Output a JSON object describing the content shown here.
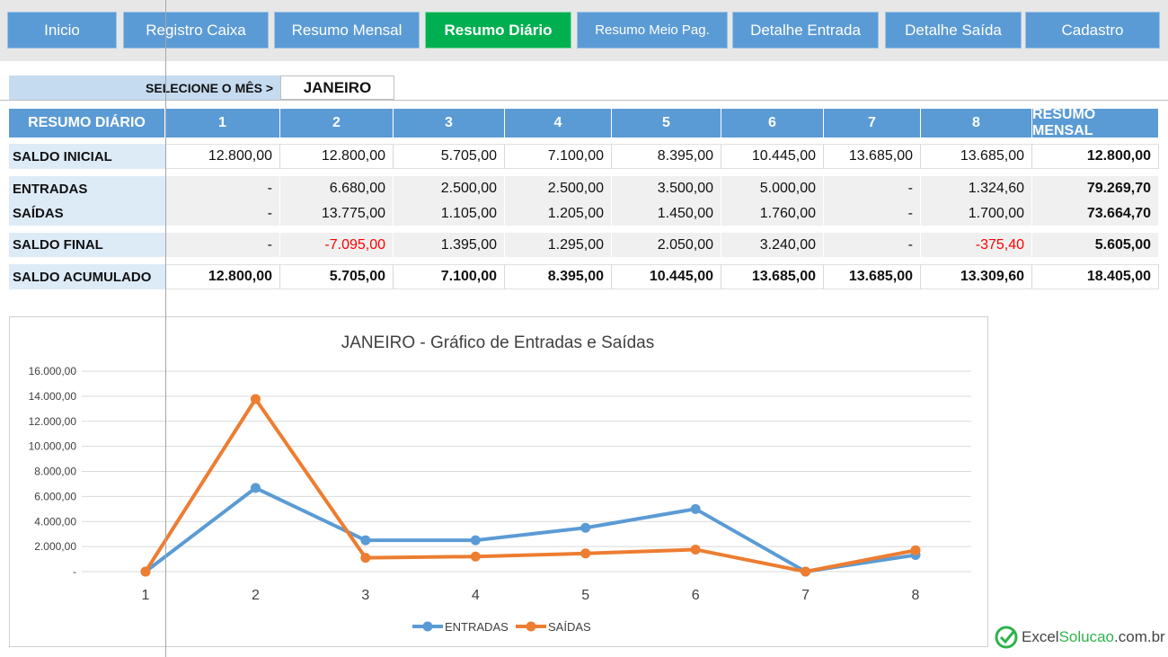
{
  "nav": [
    {
      "label": "Inicio",
      "active": false
    },
    {
      "label": "Registro Caixa",
      "active": false
    },
    {
      "label": "Resumo Mensal",
      "active": false
    },
    {
      "label": "Resumo Diário",
      "active": true
    },
    {
      "label": "Resumo Meio Pag.",
      "active": false
    },
    {
      "label": "Detalhe Entrada",
      "active": false
    },
    {
      "label": "Detalhe Saída",
      "active": false
    },
    {
      "label": "Cadastro",
      "active": false
    }
  ],
  "month_selector": {
    "label": "SELECIONE O MÊS >",
    "value": "JANEIRO"
  },
  "table": {
    "header_label": "RESUMO DIÁRIO",
    "columns": [
      "1",
      "2",
      "3",
      "4",
      "5",
      "6",
      "7",
      "8"
    ],
    "summary_header": "RESUMO MENSAL",
    "rows": [
      {
        "label": "SALDO INICIAL",
        "values": [
          "12.800,00",
          "12.800,00",
          "5.705,00",
          "7.100,00",
          "8.395,00",
          "10.445,00",
          "13.685,00",
          "13.685,00"
        ],
        "summary": "12.800,00"
      },
      {
        "label": "ENTRADAS",
        "values": [
          "-",
          "6.680,00",
          "2.500,00",
          "2.500,00",
          "3.500,00",
          "5.000,00",
          "-",
          "1.324,60"
        ],
        "summary": "79.269,70"
      },
      {
        "label": "SAÍDAS",
        "values": [
          "-",
          "13.775,00",
          "1.105,00",
          "1.205,00",
          "1.450,00",
          "1.760,00",
          "-",
          "1.700,00"
        ],
        "summary": "73.664,70"
      },
      {
        "label": "SALDO FINAL",
        "values": [
          "-",
          "-7.095,00",
          "1.395,00",
          "1.295,00",
          "2.050,00",
          "3.240,00",
          "-",
          "-375,40"
        ],
        "summary": "5.605,00"
      },
      {
        "label": "SALDO ACUMULADO",
        "values": [
          "12.800,00",
          "5.705,00",
          "7.100,00",
          "8.395,00",
          "10.445,00",
          "13.685,00",
          "13.685,00",
          "13.309,60"
        ],
        "summary": "18.405,00"
      }
    ]
  },
  "chart_data": {
    "type": "line",
    "title": "JANEIRO - Gráfico de Entradas e Saídas",
    "categories": [
      "1",
      "2",
      "3",
      "4",
      "5",
      "6",
      "7",
      "8"
    ],
    "ylim": [
      0,
      16000
    ],
    "ytick_labels": [
      "-",
      "2.000,00",
      "4.000,00",
      "6.000,00",
      "8.000,00",
      "10.000,00",
      "12.000,00",
      "14.000,00",
      "16.000,00"
    ],
    "grid": true,
    "legend_position": "bottom",
    "series": [
      {
        "name": "ENTRADAS",
        "color": "#5b9bd5",
        "values": [
          0,
          6680,
          2500,
          2500,
          3500,
          5000,
          0,
          1324.6
        ]
      },
      {
        "name": "SAÍDAS",
        "color": "#ed7d31",
        "values": [
          0,
          13775,
          1105,
          1205,
          1450,
          1760,
          0,
          1700
        ]
      }
    ]
  },
  "logo": {
    "part1": "Excel",
    "part2": "Solucao",
    "part3": ".com.br",
    "icon": "check-circle-icon"
  }
}
